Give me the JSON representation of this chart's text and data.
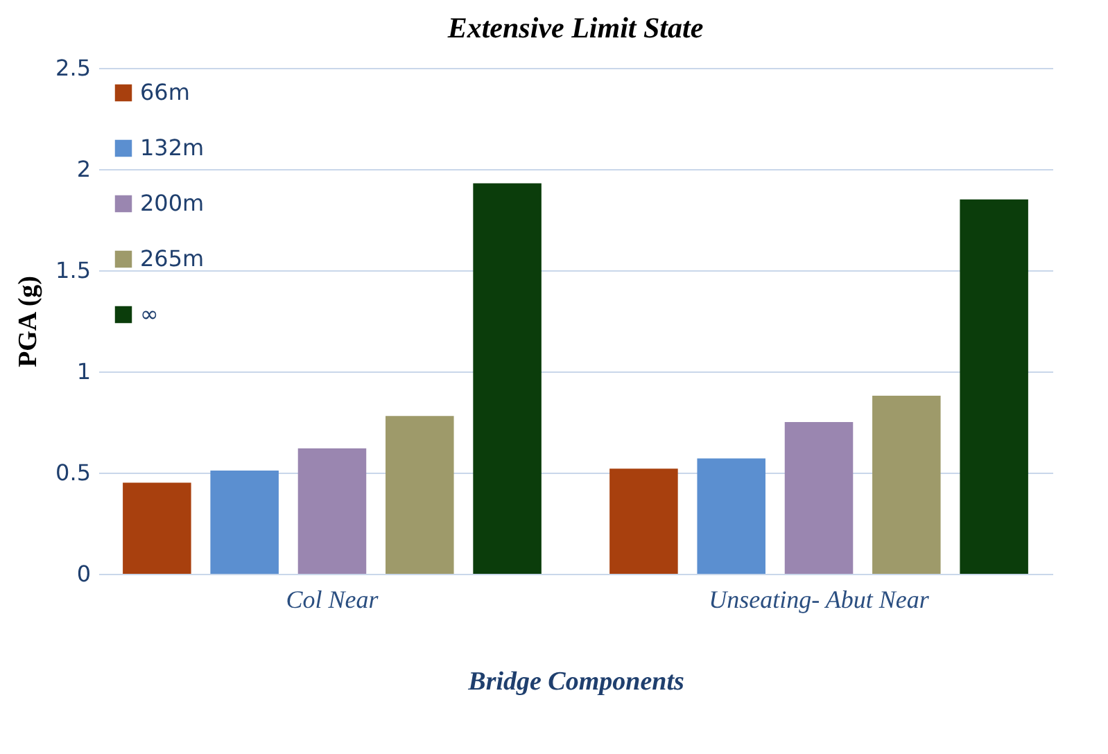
{
  "chart_data": {
    "type": "bar",
    "title": "Extensive Limit State",
    "xlabel": "Bridge Components",
    "ylabel": "PGA (g)",
    "categories": [
      "Col Near",
      "Unseating- Abut Near"
    ],
    "series": [
      {
        "name": "66m",
        "color": "#a8400e",
        "values": [
          0.45,
          0.52
        ]
      },
      {
        "name": "132m",
        "color": "#5b8fd0",
        "values": [
          0.51,
          0.57
        ]
      },
      {
        "name": "200m",
        "color": "#9a86b0",
        "values": [
          0.62,
          0.75
        ]
      },
      {
        "name": "265m",
        "color": "#9e9a6a",
        "values": [
          0.78,
          0.88
        ]
      },
      {
        "name": "∞",
        "color": "#0b3d0b",
        "values": [
          1.93,
          1.85
        ]
      }
    ],
    "ylim": [
      0,
      2.5
    ],
    "yticks": [
      0,
      0.5,
      1,
      1.5,
      2,
      2.5
    ],
    "grid": "y",
    "legend": "top left"
  }
}
